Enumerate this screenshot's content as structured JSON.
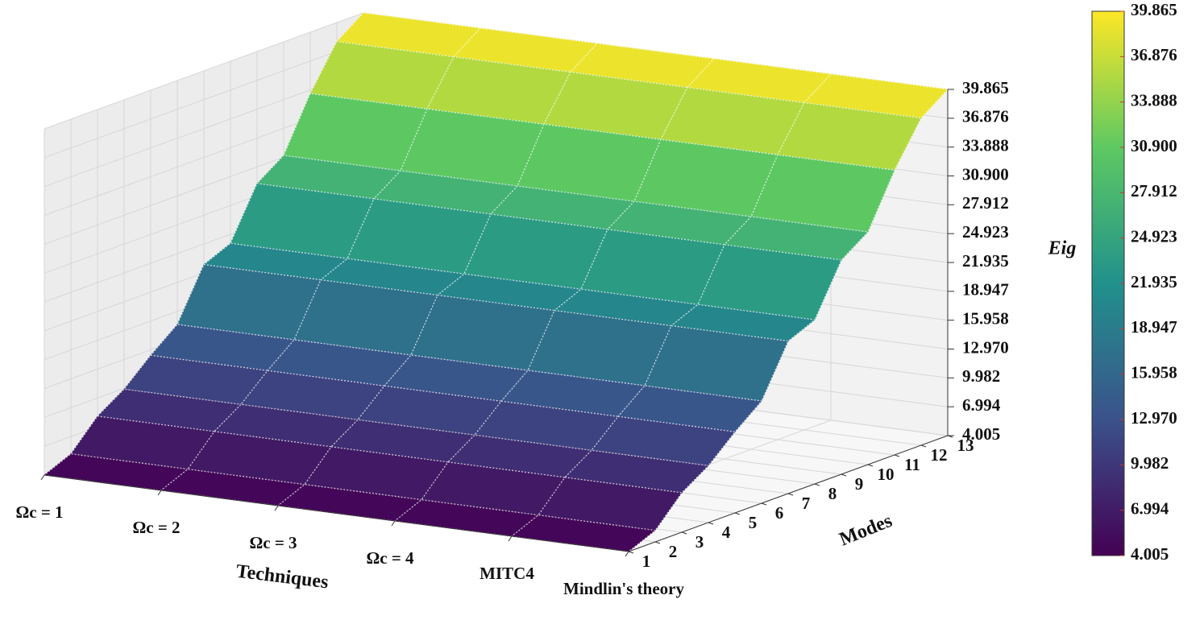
{
  "chart_data": {
    "type": "surface3d",
    "x_label": "Techniques",
    "y_label": "Modes",
    "z_label": "Eig",
    "categories": [
      "Ωc = 1",
      "Ωc = 2",
      "Ωc = 3",
      "Ωc = 4",
      "MITC4",
      "Mindlin's theory"
    ],
    "y": [
      1,
      2,
      3,
      4,
      5,
      6,
      7,
      8,
      9,
      10,
      11,
      12,
      13
    ],
    "values": [
      [
        4.005,
        5.2,
        8.1,
        9.9,
        12.4,
        14.6,
        19.8,
        21.0,
        26.2,
        28.1,
        33.5,
        37.9,
        39.865
      ],
      [
        4.005,
        5.2,
        8.1,
        9.9,
        12.4,
        14.6,
        19.8,
        21.0,
        26.2,
        28.1,
        33.5,
        37.9,
        39.865
      ],
      [
        4.005,
        5.2,
        8.1,
        9.9,
        12.4,
        14.6,
        19.8,
        21.0,
        26.2,
        28.1,
        33.5,
        37.9,
        39.865
      ],
      [
        4.005,
        5.2,
        8.1,
        9.9,
        12.4,
        14.6,
        19.8,
        21.0,
        26.2,
        28.1,
        33.5,
        37.9,
        39.865
      ],
      [
        4.005,
        5.2,
        8.1,
        9.9,
        12.4,
        14.6,
        19.8,
        21.0,
        26.2,
        28.1,
        33.5,
        37.9,
        39.865
      ],
      [
        4.005,
        5.2,
        8.1,
        9.9,
        12.4,
        14.6,
        19.8,
        21.0,
        26.2,
        28.1,
        33.5,
        37.9,
        39.865
      ]
    ],
    "zlim": [
      4.005,
      39.865
    ],
    "zticks": [
      4.005,
      6.994,
      9.982,
      {
        "value": 12.97,
        "label": "12.970"
      },
      15.958,
      18.947,
      21.935,
      24.923,
      27.912,
      {
        "value": 30.9,
        "label": "30.900"
      },
      33.888,
      36.876,
      39.865
    ],
    "colormap": "viridis",
    "colorbar": true,
    "grid": true
  }
}
